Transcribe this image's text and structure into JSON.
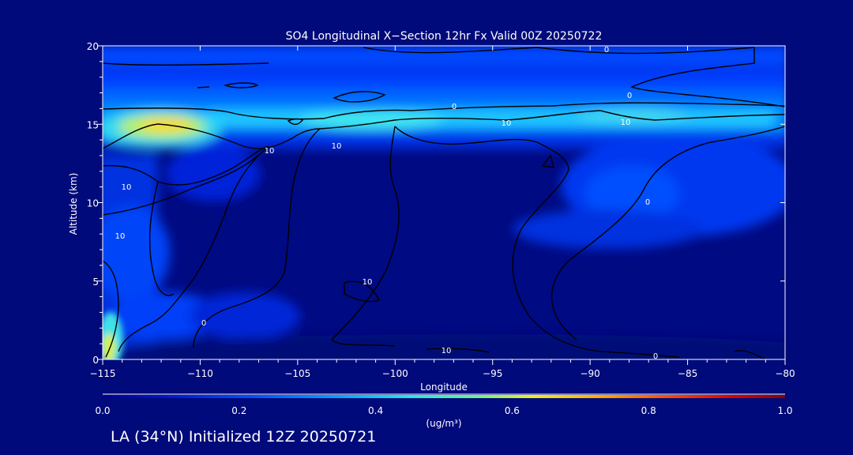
{
  "chart_data": {
    "type": "heatmap",
    "title": "SO4 Longitudinal X−Section 12hr  Fx Valid 00Z 20250722",
    "xlabel": "Longitude",
    "ylabel": "Altitude (km)",
    "xlim": [
      -115,
      -80
    ],
    "ylim": [
      0,
      20
    ],
    "x_ticks": [
      -115,
      -110,
      -105,
      -100,
      -95,
      -90,
      -85,
      -80
    ],
    "x_tick_labels": [
      "−115",
      "−110",
      "−105",
      "−100",
      "−95",
      "−90",
      "−85",
      "−80"
    ],
    "y_ticks": [
      0,
      5,
      10,
      15,
      20
    ],
    "y_tick_labels": [
      "0",
      "5",
      "10",
      "15",
      "20"
    ],
    "colorbar": {
      "min": 0.0,
      "max": 1.0,
      "ticks": [
        0.0,
        0.2,
        0.4,
        0.6,
        0.8,
        1.0
      ],
      "tick_labels": [
        "0.0",
        "0.2",
        "0.4",
        "0.6",
        "0.8",
        "1.0"
      ],
      "unit_label": "(ug/m³)"
    },
    "contour_labels": [
      "0",
      "0",
      "0",
      "0",
      "0",
      "0",
      "10",
      "10",
      "10",
      "10",
      "10",
      "10",
      "10",
      "10"
    ],
    "grid": false,
    "subtitle": "LA (34°N) Initialized 12Z 20250721"
  }
}
